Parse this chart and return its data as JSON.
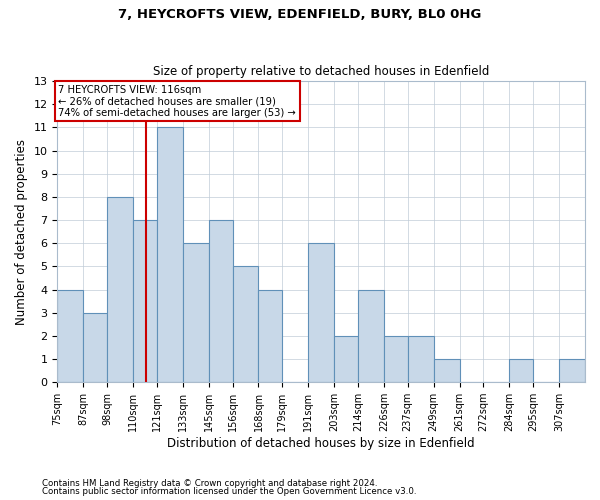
{
  "title1": "7, HEYCROFTS VIEW, EDENFIELD, BURY, BL0 0HG",
  "title2": "Size of property relative to detached houses in Edenfield",
  "xlabel": "Distribution of detached houses by size in Edenfield",
  "ylabel": "Number of detached properties",
  "bin_edges": [
    75,
    87,
    98,
    110,
    121,
    133,
    145,
    156,
    168,
    179,
    191,
    203,
    214,
    226,
    237,
    249,
    261,
    272,
    284,
    295,
    307,
    319
  ],
  "bin_labels": [
    "75sqm",
    "87sqm",
    "98sqm",
    "110sqm",
    "121sqm",
    "133sqm",
    "145sqm",
    "156sqm",
    "168sqm",
    "179sqm",
    "191sqm",
    "203sqm",
    "214sqm",
    "226sqm",
    "237sqm",
    "249sqm",
    "261sqm",
    "272sqm",
    "284sqm",
    "295sqm",
    "307sqm"
  ],
  "heights": [
    4,
    3,
    8,
    7,
    11,
    6,
    7,
    5,
    4,
    0,
    6,
    2,
    4,
    2,
    2,
    1,
    0,
    0,
    1,
    0,
    1
  ],
  "bar_color": "#c8d8e8",
  "bar_edge_color": "#6090b8",
  "vline_x": 116,
  "vline_color": "#cc0000",
  "annotation_text": "7 HEYCROFTS VIEW: 116sqm\n← 26% of detached houses are smaller (19)\n74% of semi-detached houses are larger (53) →",
  "annotation_box_color": "#ffffff",
  "annotation_box_edge": "#cc0000",
  "ylim": [
    0,
    13
  ],
  "yticks": [
    0,
    1,
    2,
    3,
    4,
    5,
    6,
    7,
    8,
    9,
    10,
    11,
    12,
    13
  ],
  "footnote1": "Contains HM Land Registry data © Crown copyright and database right 2024.",
  "footnote2": "Contains public sector information licensed under the Open Government Licence v3.0.",
  "bg_color": "#ffffff",
  "grid_color": "#c0ccd8",
  "title1_fontsize": 9.5,
  "title2_fontsize": 8.5
}
